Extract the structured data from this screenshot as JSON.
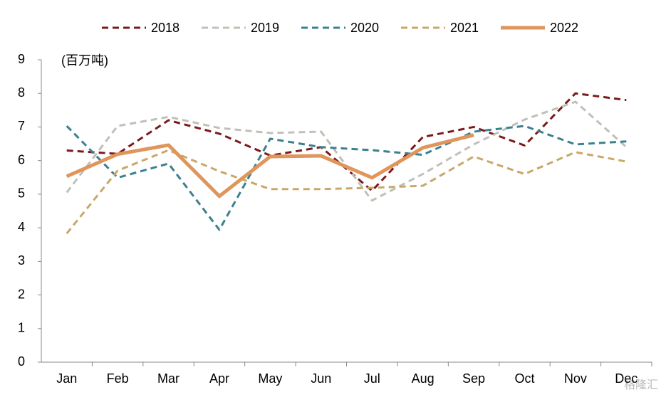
{
  "chart_data": {
    "type": "line",
    "y_unit_label": "(百万吨)",
    "watermark": "格隆汇",
    "categories": [
      "Jan",
      "Feb",
      "Mar",
      "Apr",
      "May",
      "Jun",
      "Jul",
      "Aug",
      "Sep",
      "Oct",
      "Nov",
      "Dec"
    ],
    "series": [
      {
        "name": "2018",
        "color": "#7b1a1a",
        "dashed": true,
        "values": [
          6.3,
          6.2,
          7.2,
          6.8,
          6.15,
          6.4,
          5.1,
          6.7,
          7.0,
          6.45,
          8.0,
          7.8
        ]
      },
      {
        "name": "2019",
        "color": "#c0c0b8",
        "dashed": true,
        "values": [
          5.05,
          7.03,
          7.3,
          6.97,
          6.82,
          6.86,
          4.81,
          5.6,
          6.48,
          7.22,
          7.75,
          6.4
        ]
      },
      {
        "name": "2020",
        "color": "#3a8090",
        "dashed": true,
        "values": [
          7.03,
          5.49,
          5.91,
          3.94,
          6.65,
          6.4,
          6.31,
          6.17,
          6.86,
          7.03,
          6.48,
          6.57
        ]
      },
      {
        "name": "2021",
        "color": "#c8a868",
        "dashed": true,
        "values": [
          3.83,
          5.7,
          6.31,
          5.68,
          5.15,
          5.15,
          5.19,
          5.25,
          6.12,
          5.6,
          6.25,
          5.97
        ]
      },
      {
        "name": "2022",
        "color": "#e0955a",
        "dashed": false,
        "values": [
          5.53,
          6.19,
          6.46,
          4.94,
          6.12,
          6.14,
          5.49,
          6.38,
          6.76,
          null,
          null,
          null
        ]
      }
    ],
    "ylim": [
      0,
      9
    ],
    "yticks": [
      0,
      1,
      2,
      3,
      4,
      5,
      6,
      7,
      8,
      9
    ],
    "grid": false,
    "legend": "top"
  }
}
